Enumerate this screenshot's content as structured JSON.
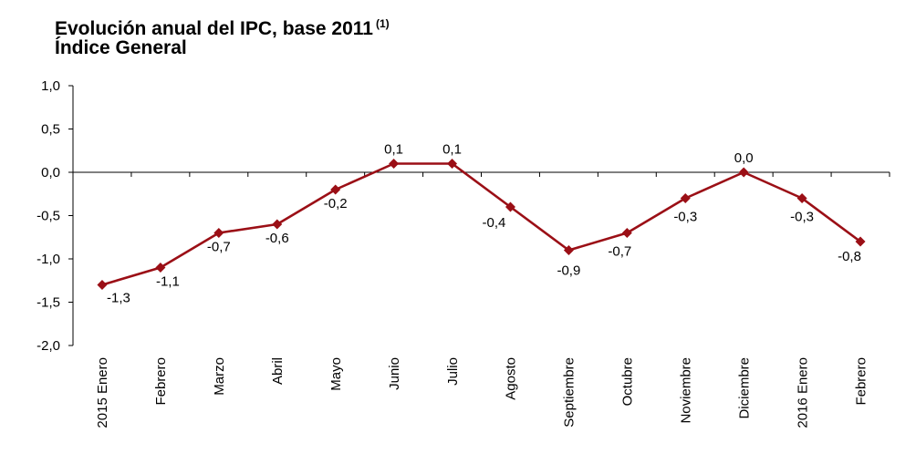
{
  "chart_data": {
    "type": "line",
    "title": "Evolución anual del IPC, base 2011",
    "title_note": "(1)",
    "subtitle": "Índice General",
    "categories": [
      "2015 Enero",
      "Febrero",
      "Marzo",
      "Abril",
      "Mayo",
      "Junio",
      "Julio",
      "Agosto",
      "Septiembre",
      "Octubre",
      "Noviembre",
      "Diciembre",
      "2016 Enero",
      "Febrero"
    ],
    "series": [
      {
        "values": [
          -1.3,
          -1.1,
          -0.7,
          -0.6,
          -0.2,
          0.1,
          0.1,
          -0.4,
          -0.9,
          -0.7,
          -0.3,
          0.0,
          -0.3,
          -0.8
        ],
        "data_labels": [
          "-1,3",
          "-1,1",
          "-0,7",
          "-0,6",
          "-0,2",
          "0,1",
          "0,1",
          "-0,4",
          "-0,9",
          "-0,7",
          "-0,3",
          "0,0",
          "-0,3",
          "-0,8"
        ],
        "color": "#9b0f16"
      }
    ],
    "ylim": [
      -2.0,
      1.0
    ],
    "yticks": [
      1.0,
      0.5,
      0.0,
      -0.5,
      -1.0,
      -1.5,
      -2.0
    ],
    "ytick_labels": [
      "1,0",
      "0,5",
      "0,0",
      "-0,5",
      "-1,0",
      "-1,5",
      "-2,0"
    ],
    "grid": false,
    "legend": "none",
    "xlabel": "",
    "ylabel": ""
  }
}
